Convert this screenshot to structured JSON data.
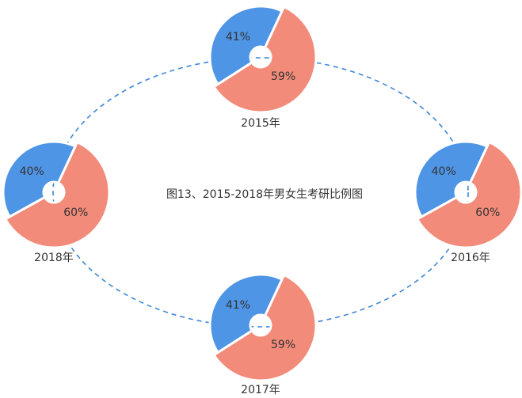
{
  "title": "图13、2015-2018年男女生考研比例图",
  "chart_data": [
    {
      "type": "pie",
      "title": "2015年",
      "values": [
        41,
        59
      ],
      "value_labels": [
        "41%",
        "59%"
      ],
      "colors": [
        "#4f95e5",
        "#f28b7a"
      ]
    },
    {
      "type": "pie",
      "title": "2016年",
      "values": [
        40,
        60
      ],
      "value_labels": [
        "40%",
        "60%"
      ],
      "colors": [
        "#4f95e5",
        "#f28b7a"
      ]
    },
    {
      "type": "pie",
      "title": "2017年",
      "values": [
        41,
        59
      ],
      "value_labels": [
        "41%",
        "59%"
      ],
      "colors": [
        "#4f95e5",
        "#f28b7a"
      ]
    },
    {
      "type": "pie",
      "title": "2018年",
      "values": [
        40,
        60
      ],
      "value_labels": [
        "40%",
        "60%"
      ],
      "colors": [
        "#4f95e5",
        "#f28b7a"
      ]
    }
  ]
}
